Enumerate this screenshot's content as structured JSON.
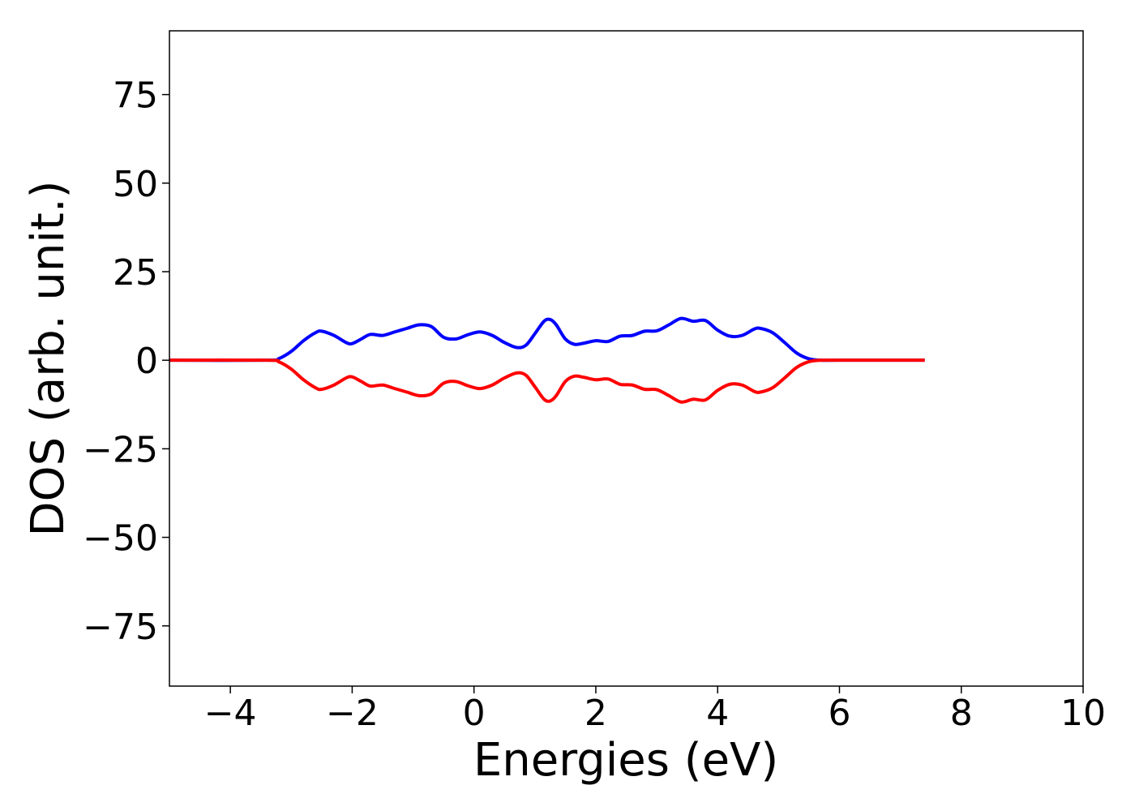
{
  "chart_data": {
    "type": "line",
    "title": "",
    "xlabel": "Energies (eV)",
    "ylabel": "DOS (arb. unit.)",
    "xlim": [
      -5,
      10
    ],
    "ylim": [
      -92,
      93
    ],
    "xticks": [
      -4,
      -2,
      0,
      2,
      4,
      6,
      8,
      10
    ],
    "xtick_labels": [
      "−4",
      "−2",
      "0",
      "2",
      "4",
      "6",
      "8",
      "10"
    ],
    "yticks": [
      -75,
      -50,
      -25,
      0,
      25,
      50,
      75
    ],
    "ytick_labels": [
      "−75",
      "−50",
      "−25",
      "0",
      "25",
      "50",
      "75"
    ],
    "grid": false,
    "legend": "none",
    "series": [
      {
        "color": "#0000ff",
        "x": [
          -5.0,
          -3.4,
          -3.2,
          -3.0,
          -2.8,
          -2.6,
          -2.5,
          -2.3,
          -2.1,
          -2.0,
          -1.85,
          -1.7,
          -1.5,
          -1.3,
          -1.1,
          -0.9,
          -0.7,
          -0.5,
          -0.3,
          -0.1,
          0.1,
          0.3,
          0.5,
          0.7,
          0.85,
          1.0,
          1.15,
          1.25,
          1.35,
          1.5,
          1.65,
          1.8,
          2.0,
          2.2,
          2.4,
          2.6,
          2.8,
          3.0,
          3.2,
          3.4,
          3.6,
          3.8,
          4.0,
          4.2,
          4.4,
          4.6,
          4.7,
          4.9,
          5.1,
          5.3,
          5.5,
          5.7,
          6.0,
          7.4
        ],
        "y": [
          0,
          0,
          0.5,
          2.5,
          5.5,
          7.8,
          8.2,
          7.0,
          5.0,
          4.7,
          6.0,
          7.3,
          7.0,
          8.0,
          9.0,
          10.0,
          9.5,
          6.5,
          6.0,
          7.2,
          8.0,
          7.0,
          5.0,
          3.6,
          4.2,
          7.5,
          11.0,
          11.5,
          10.0,
          6.0,
          4.5,
          4.8,
          5.5,
          5.3,
          6.8,
          7.0,
          8.2,
          8.3,
          10.0,
          11.8,
          11.0,
          11.2,
          8.5,
          6.8,
          7.0,
          8.8,
          9.0,
          7.8,
          5.0,
          2.0,
          0.4,
          0,
          0,
          0
        ]
      },
      {
        "color": "#ff0000",
        "x": [
          -5.0,
          -3.4,
          -3.2,
          -3.0,
          -2.8,
          -2.6,
          -2.5,
          -2.3,
          -2.1,
          -2.0,
          -1.85,
          -1.7,
          -1.5,
          -1.3,
          -1.1,
          -0.9,
          -0.7,
          -0.5,
          -0.3,
          -0.1,
          0.1,
          0.3,
          0.5,
          0.7,
          0.85,
          1.0,
          1.15,
          1.25,
          1.35,
          1.5,
          1.65,
          1.8,
          2.0,
          2.2,
          2.4,
          2.6,
          2.8,
          3.0,
          3.2,
          3.4,
          3.6,
          3.8,
          4.0,
          4.2,
          4.4,
          4.6,
          4.7,
          4.9,
          5.1,
          5.3,
          5.5,
          5.7,
          6.0,
          7.4
        ],
        "y": [
          0,
          0,
          -0.5,
          -2.5,
          -5.5,
          -7.8,
          -8.2,
          -7.0,
          -5.0,
          -4.7,
          -6.0,
          -7.3,
          -7.0,
          -8.0,
          -9.0,
          -10.0,
          -9.5,
          -6.5,
          -6.0,
          -7.2,
          -8.0,
          -7.0,
          -5.0,
          -3.6,
          -4.2,
          -7.5,
          -11.0,
          -11.5,
          -10.0,
          -6.0,
          -4.5,
          -4.8,
          -5.5,
          -5.3,
          -6.8,
          -7.0,
          -8.2,
          -8.3,
          -10.0,
          -11.8,
          -11.0,
          -11.2,
          -8.5,
          -6.8,
          -7.0,
          -8.8,
          -9.0,
          -7.8,
          -5.0,
          -2.0,
          -0.4,
          0,
          0,
          0
        ]
      }
    ]
  }
}
